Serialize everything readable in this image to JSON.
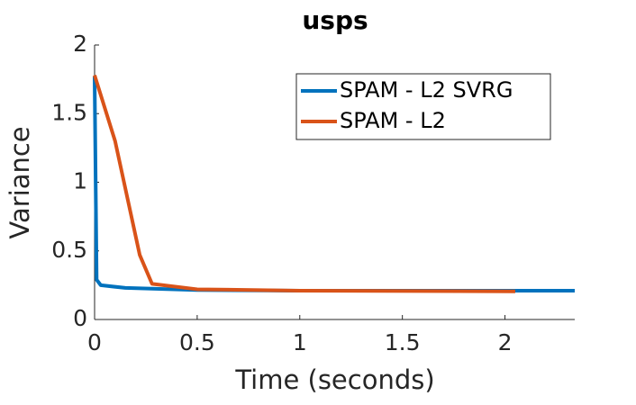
{
  "chart_data": {
    "type": "line",
    "title": "usps",
    "x_label": "Time (seconds)",
    "y_label": "Variance",
    "xlim": [
      0,
      2.34
    ],
    "ylim": [
      0,
      2
    ],
    "xticks": [
      0,
      0.5,
      1,
      1.5,
      2
    ],
    "yticks": [
      0,
      0.5,
      1,
      1.5,
      2
    ],
    "legend": "upper right",
    "series": [
      {
        "name": "SPAM - L2 SVRG",
        "color": "#0072bd",
        "x": [
          0,
          0.01,
          0.03,
          0.15,
          0.5,
          1,
          2.34
        ],
        "values": [
          1.77,
          0.29,
          0.25,
          0.23,
          0.215,
          0.21,
          0.21
        ]
      },
      {
        "name": "SPAM - L2",
        "color": "#d95319",
        "x": [
          0,
          0.1,
          0.22,
          0.28,
          0.5,
          1,
          2.05
        ],
        "values": [
          1.78,
          1.3,
          0.47,
          0.26,
          0.22,
          0.21,
          0.205
        ]
      }
    ]
  }
}
